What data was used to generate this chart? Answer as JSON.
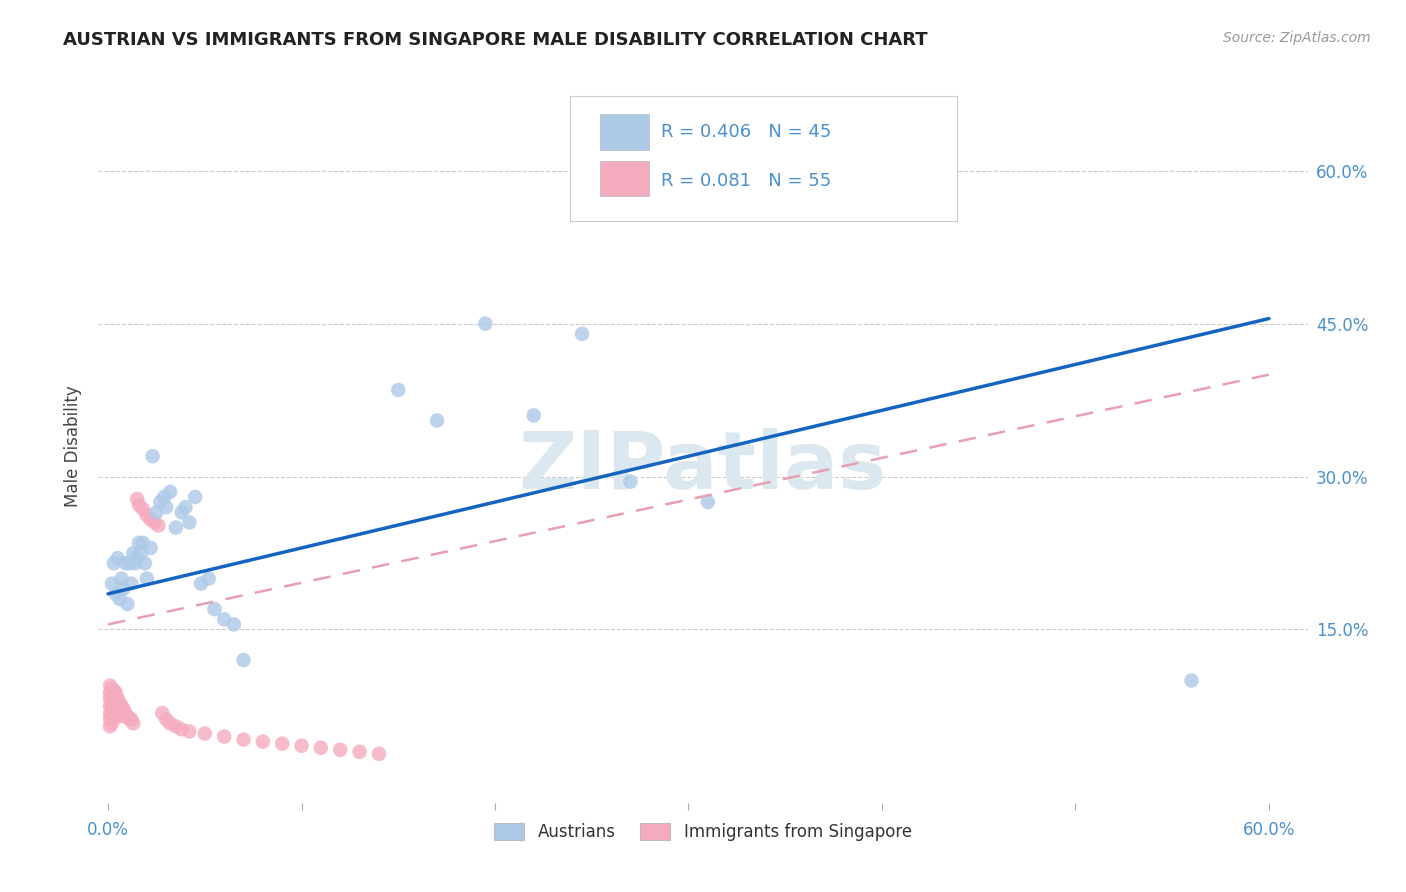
{
  "title": "AUSTRIAN VS IMMIGRANTS FROM SINGAPORE MALE DISABILITY CORRELATION CHART",
  "source": "Source: ZipAtlas.com",
  "ylabel": "Male Disability",
  "xlim": [
    -0.005,
    0.62
  ],
  "ylim": [
    -0.02,
    0.68
  ],
  "xtick_positions": [
    0.0,
    0.1,
    0.2,
    0.3,
    0.4,
    0.5,
    0.6
  ],
  "xtick_labels": [
    "0.0%",
    "",
    "",
    "",
    "",
    "",
    "60.0%"
  ],
  "ytick_positions": [
    0.15,
    0.3,
    0.45,
    0.6
  ],
  "ytick_labels": [
    "15.0%",
    "30.0%",
    "45.0%",
    "60.0%"
  ],
  "legend_R1": "0.406",
  "legend_N1": "45",
  "legend_R2": "0.081",
  "legend_N2": "55",
  "color_austrians": "#adc9e8",
  "color_singapore": "#f5abbe",
  "color_line_austrians": "#1565c0",
  "color_line_singapore": "#e8a0b0",
  "watermark": "ZIPatlas",
  "watermark_color": "#dce8f0",
  "background_color": "#ffffff",
  "austrians_x": [
    0.002,
    0.003,
    0.004,
    0.005,
    0.006,
    0.007,
    0.008,
    0.009,
    0.01,
    0.011,
    0.012,
    0.013,
    0.014,
    0.015,
    0.016,
    0.017,
    0.018,
    0.019,
    0.02,
    0.022,
    0.023,
    0.025,
    0.027,
    0.029,
    0.03,
    0.032,
    0.035,
    0.038,
    0.04,
    0.042,
    0.045,
    0.048,
    0.052,
    0.055,
    0.06,
    0.065,
    0.07,
    0.15,
    0.17,
    0.195,
    0.22,
    0.245,
    0.27,
    0.31,
    0.56
  ],
  "austrians_y": [
    0.195,
    0.215,
    0.185,
    0.22,
    0.18,
    0.2,
    0.19,
    0.215,
    0.175,
    0.215,
    0.195,
    0.225,
    0.215,
    0.22,
    0.235,
    0.225,
    0.235,
    0.215,
    0.2,
    0.23,
    0.32,
    0.265,
    0.275,
    0.28,
    0.27,
    0.285,
    0.25,
    0.265,
    0.27,
    0.255,
    0.28,
    0.195,
    0.2,
    0.17,
    0.16,
    0.155,
    0.12,
    0.385,
    0.355,
    0.45,
    0.36,
    0.44,
    0.295,
    0.275,
    0.1
  ],
  "singapore_x": [
    0.001,
    0.001,
    0.001,
    0.001,
    0.001,
    0.001,
    0.001,
    0.002,
    0.002,
    0.002,
    0.002,
    0.002,
    0.002,
    0.003,
    0.003,
    0.003,
    0.003,
    0.004,
    0.004,
    0.005,
    0.005,
    0.005,
    0.006,
    0.006,
    0.007,
    0.007,
    0.008,
    0.009,
    0.01,
    0.011,
    0.012,
    0.013,
    0.015,
    0.016,
    0.018,
    0.02,
    0.022,
    0.024,
    0.026,
    0.028,
    0.03,
    0.032,
    0.035,
    0.038,
    0.042,
    0.05,
    0.06,
    0.07,
    0.08,
    0.09,
    0.1,
    0.11,
    0.12,
    0.13,
    0.14
  ],
  "singapore_y": [
    0.095,
    0.088,
    0.082,
    0.075,
    0.068,
    0.062,
    0.055,
    0.092,
    0.085,
    0.078,
    0.072,
    0.065,
    0.058,
    0.09,
    0.082,
    0.075,
    0.068,
    0.088,
    0.075,
    0.082,
    0.072,
    0.065,
    0.078,
    0.068,
    0.075,
    0.065,
    0.072,
    0.068,
    0.065,
    0.062,
    0.062,
    0.058,
    0.278,
    0.272,
    0.268,
    0.262,
    0.258,
    0.255,
    0.252,
    0.068,
    0.062,
    0.058,
    0.055,
    0.052,
    0.05,
    0.048,
    0.045,
    0.042,
    0.04,
    0.038,
    0.036,
    0.034,
    0.032,
    0.03,
    0.028
  ],
  "austrians_line_x0": 0.0,
  "austrians_line_x1": 0.6,
  "austrians_line_y0": 0.185,
  "austrians_line_y1": 0.455,
  "singapore_line_x0": 0.0,
  "singapore_line_x1": 0.6,
  "singapore_line_y0": 0.155,
  "singapore_line_y1": 0.4
}
